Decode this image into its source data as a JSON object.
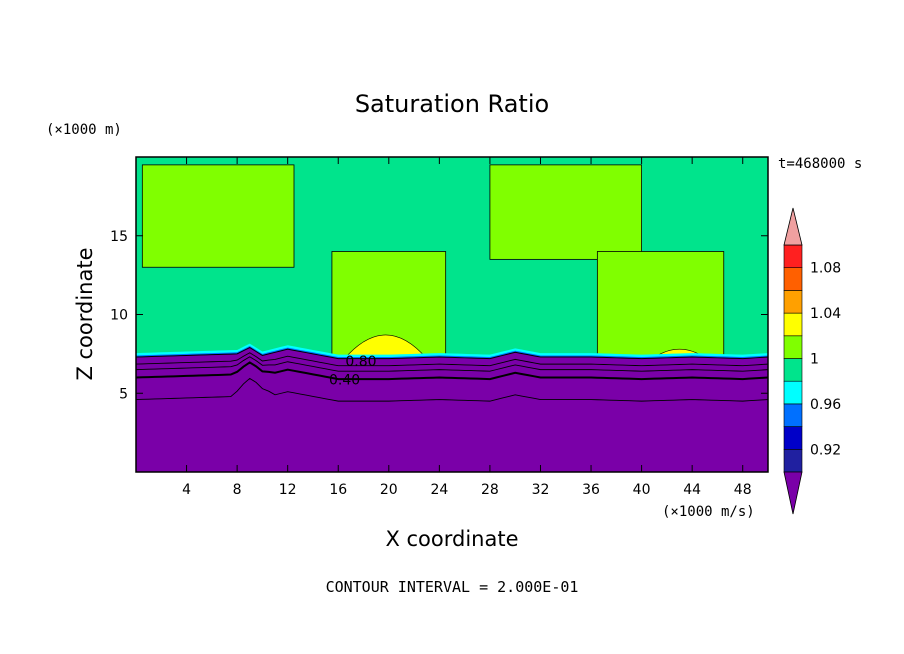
{
  "chart_data": {
    "type": "heatmap",
    "title": "Saturation Ratio",
    "xlabel": "X coordinate",
    "ylabel": "Z coordinate",
    "x_unit": "(×1000 m/s)",
    "y_unit": "(×1000 m)",
    "time_label": "t=468000 s",
    "footer": "CONTOUR INTERVAL = 2.000E-01",
    "xlim": [
      0,
      50
    ],
    "ylim": [
      0,
      20
    ],
    "xticks": [
      4,
      8,
      12,
      16,
      20,
      24,
      28,
      32,
      36,
      40,
      44,
      48
    ],
    "yticks": [
      5,
      10,
      15
    ],
    "contour_lines": [
      {
        "level": "0.80",
        "label_x": 17.8,
        "label_z": 7.0
      },
      {
        "level": "0.40",
        "label_x": 16.5,
        "label_z": 5.8
      }
    ],
    "boundaries": {
      "subsaturated_top_z": [
        [
          0,
          7.3
        ],
        [
          4,
          7.4
        ],
        [
          8,
          7.5
        ],
        [
          9,
          7.9
        ],
        [
          10,
          7.4
        ],
        [
          12,
          7.8
        ],
        [
          14,
          7.5
        ],
        [
          16,
          7.2
        ],
        [
          20,
          7.2
        ],
        [
          24,
          7.3
        ],
        [
          28,
          7.2
        ],
        [
          30,
          7.6
        ],
        [
          32,
          7.3
        ],
        [
          36,
          7.3
        ],
        [
          40,
          7.2
        ],
        [
          44,
          7.3
        ],
        [
          48,
          7.2
        ],
        [
          50,
          7.3
        ]
      ],
      "supersaturated_regions": [
        {
          "x_range": [
            0.5,
            12.5
          ],
          "z_range": [
            13.0,
            19.5
          ]
        },
        {
          "x_range": [
            15.5,
            24.5
          ],
          "z_range": [
            7.3,
            14.0
          ]
        },
        {
          "x_range": [
            28,
            40
          ],
          "z_range": [
            13.5,
            19.5
          ]
        },
        {
          "x_range": [
            36.5,
            46.5
          ],
          "z_range": [
            7.3,
            14.0
          ]
        }
      ],
      "peak_regions": [
        {
          "x_range": [
            16.5,
            23
          ],
          "z_peak": 8.7,
          "level": 1.04
        },
        {
          "x_range": [
            41,
            45
          ],
          "z_peak": 7.8,
          "level": 1.02
        }
      ]
    },
    "colorbar": {
      "labels": [
        "1.08",
        "1.04",
        "1",
        "0.96",
        "0.92"
      ],
      "levels": [
        0.92,
        0.94,
        0.96,
        0.98,
        1.0,
        1.02,
        1.04,
        1.06,
        1.08
      ],
      "colors": [
        "#7a00a8",
        "#2020a0",
        "#0000c8",
        "#0070ff",
        "#00ffff",
        "#00e48c",
        "#80ff00",
        "#ffff00",
        "#ffa000",
        "#ff6000",
        "#ff2020",
        "#f0a0a0"
      ],
      "label_levels": [
        1.08,
        1.04,
        1.0,
        0.96,
        0.92
      ]
    }
  }
}
